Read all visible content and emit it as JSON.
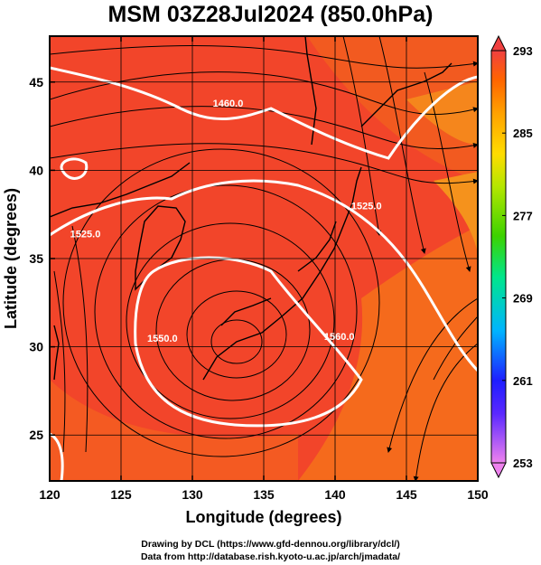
{
  "title": "MSM 03Z28Jul2024 (850.0hPa)",
  "x_axis": {
    "label": "Longitude (degrees)",
    "range": [
      120,
      150
    ],
    "ticks": [
      120,
      125,
      130,
      135,
      140,
      145,
      150
    ]
  },
  "y_axis": {
    "label": "Latitude  (degrees)",
    "range": [
      22.4,
      47.6
    ],
    "ticks": [
      25,
      30,
      35,
      40,
      45
    ]
  },
  "colorbar": {
    "range": [
      253,
      293
    ],
    "tick_labels": [
      "293",
      "285",
      "277",
      "269",
      "261",
      "253"
    ],
    "colors": [
      "#ee82ee",
      "#1e1eff",
      "#00b4ff",
      "#00e68c",
      "#3cd200",
      "#b4e600",
      "#ffdc00",
      "#ffa000",
      "#ff6400",
      "#f04040"
    ]
  },
  "contours": [
    {
      "label": "1460.0",
      "lon": 132.5,
      "lat": 43.6
    },
    {
      "label": "1525.0",
      "lon": 122.5,
      "lat": 36.2
    },
    {
      "label": "1525.0",
      "lon": 142.2,
      "lat": 37.8
    },
    {
      "label": "1550.0",
      "lon": 127.9,
      "lat": 30.3
    },
    {
      "label": "1560.0",
      "lon": 140.3,
      "lat": 30.4
    }
  ],
  "credits": {
    "line1": "Drawing by DCL (https://www.gfd-dennou.org/library/dcl/)",
    "line2": "Data from http://database.rish.kyoto-u.ac.jp/arch/jmadata/"
  }
}
